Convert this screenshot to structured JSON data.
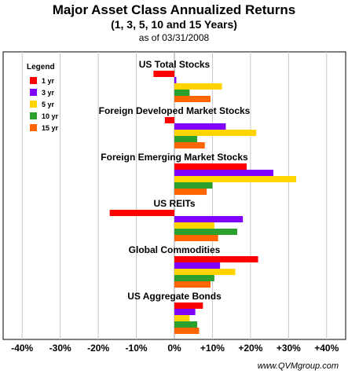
{
  "chart_data": {
    "type": "bar",
    "orientation": "horizontal",
    "title": "Major Asset Class Annualized Returns",
    "subtitle": "(1, 3, 5, 10 and 15 Years)",
    "note": "as of 03/31/2008",
    "legend_title": "Legend",
    "legend_position": "top-left",
    "categories": [
      "US Total Stocks",
      "Foreign Developed Market Stocks",
      "Foreign Emerging Market Stocks",
      "US REITs",
      "Global Commodities",
      "US Aggregate Bonds"
    ],
    "series": [
      {
        "name": "1 yr",
        "color": "#ff0000",
        "values": [
          -5.5,
          -2.5,
          19,
          -17,
          22,
          7.5
        ]
      },
      {
        "name": "3 yr",
        "color": "#8000ff",
        "values": [
          0.5,
          13.5,
          26,
          18,
          12,
          5.5
        ]
      },
      {
        "name": "5 yr",
        "color": "#ffd400",
        "values": [
          12.5,
          21.5,
          32,
          10.5,
          16,
          4
        ]
      },
      {
        "name": "10 yr",
        "color": "#2ca02c",
        "values": [
          4,
          6,
          10,
          16.5,
          10.5,
          6
        ]
      },
      {
        "name": "15 yr",
        "color": "#ff6600",
        "values": [
          9.5,
          8,
          8.5,
          11.5,
          9.5,
          6.5
        ]
      }
    ],
    "xlim": [
      -45,
      45
    ],
    "xticks": [
      -40,
      -30,
      -20,
      -10,
      0,
      10,
      20,
      30,
      40
    ],
    "xtick_labels": [
      "-40%",
      "-30%",
      "-20%",
      "-10%",
      "0%",
      "+10%",
      "+20%",
      "+30%",
      "+40%"
    ],
    "grid": true
  },
  "footer": "www.QVMgroup.com"
}
